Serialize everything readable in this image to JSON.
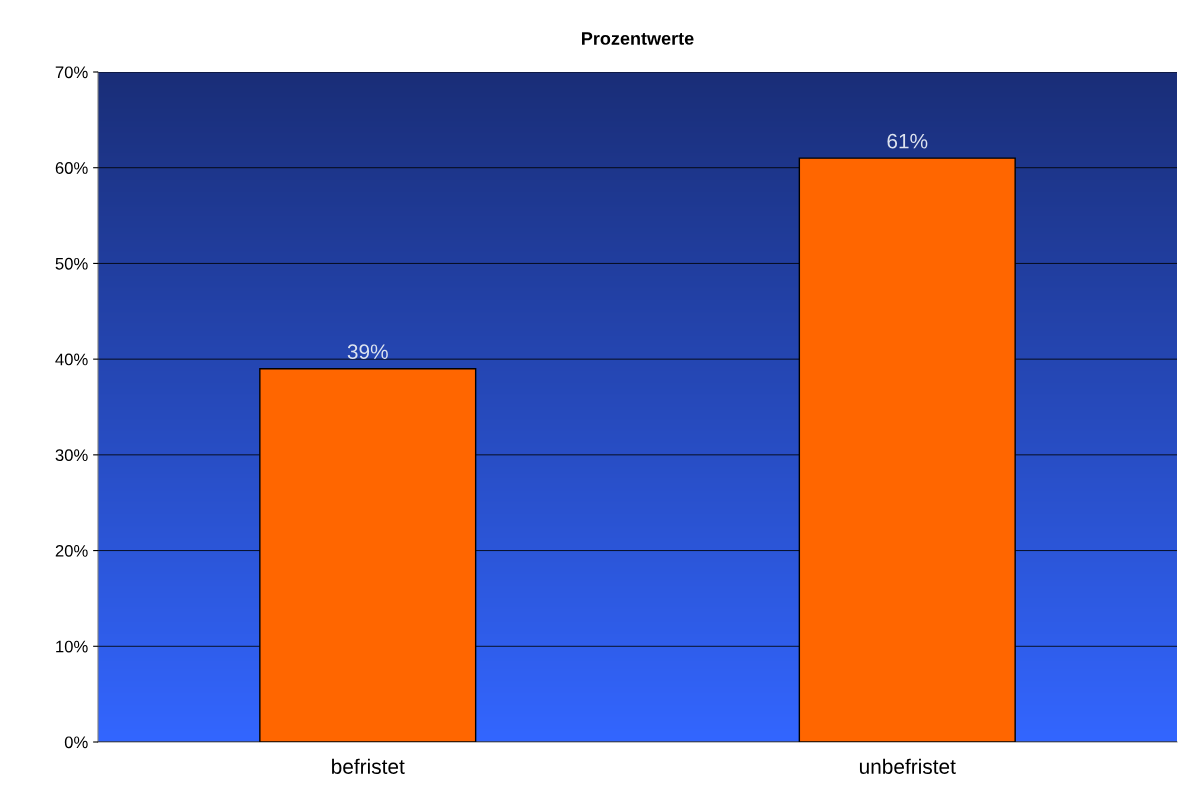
{
  "chart_data": {
    "type": "bar",
    "title": "Prozentwerte",
    "categories": [
      "befristet",
      "unbefristet"
    ],
    "values": [
      39,
      61
    ],
    "color": "#ff6600",
    "value_labels": [
      "39%",
      "61%"
    ],
    "ylim": [
      0,
      70
    ],
    "yticks": [
      {
        "value": 0,
        "label": "0%"
      },
      {
        "value": 10,
        "label": "10%"
      },
      {
        "value": 20,
        "label": "20%"
      },
      {
        "value": 30,
        "label": "30%"
      },
      {
        "value": 40,
        "label": "40%"
      },
      {
        "value": 50,
        "label": "50%"
      },
      {
        "value": 60,
        "label": "60%"
      },
      {
        "value": 70,
        "label": "70%"
      }
    ],
    "grid": "y",
    "legend": false
  }
}
